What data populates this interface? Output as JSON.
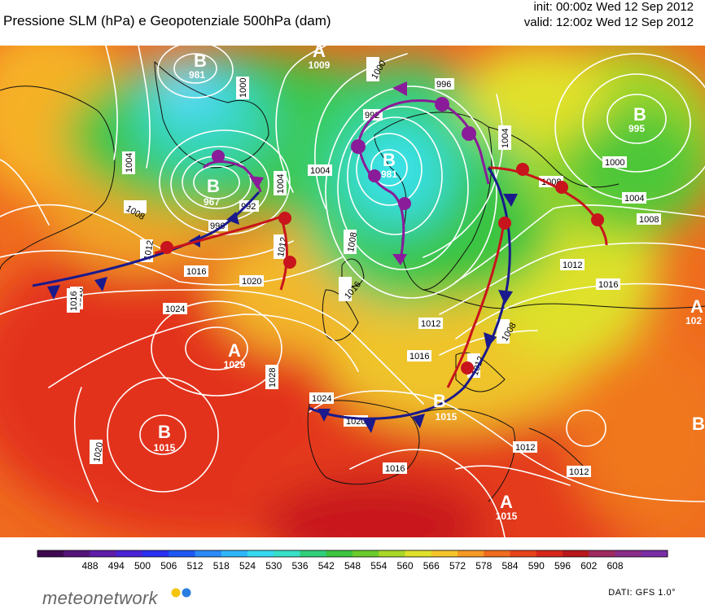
{
  "header": {
    "title": "Pressione SLM (hPa) e Geopotenziale 500hPa (dam)",
    "init": "init: 00:00z Wed 12 Sep 2012",
    "valid": "valid: 12:00z Wed 12 Sep 2012"
  },
  "pressure_centers": [
    {
      "letter": "B",
      "value": "981"
    },
    {
      "letter": "A",
      "value": "1009"
    },
    {
      "letter": "B",
      "value": "967"
    },
    {
      "letter": "B",
      "value": "981"
    },
    {
      "letter": "B",
      "value": "995"
    },
    {
      "letter": "A",
      "value": "1029"
    },
    {
      "letter": "B",
      "value": "1015"
    },
    {
      "letter": "A",
      "value": "1015"
    },
    {
      "letter": "A",
      "value": "102"
    },
    {
      "letter": "B",
      "value": "1015"
    },
    {
      "letter": "B",
      "value": ""
    }
  ],
  "isobar_labels": [
    "1000",
    "1004",
    "1008",
    "1012",
    "1016",
    "992",
    "996",
    "1020",
    "1024",
    "1028",
    "1004",
    "1008",
    "1012",
    "1016",
    "1004",
    "1000",
    "1004",
    "1008",
    "1012",
    "1016",
    "1000",
    "992",
    "996",
    "1004",
    "1008",
    "1012",
    "1016",
    "1020",
    "1024",
    "1016",
    "1012",
    "1012",
    "1020",
    "1016",
    "1008",
    "1012",
    "1016"
  ],
  "colorbar": {
    "ticks": [
      "488",
      "494",
      "500",
      "506",
      "512",
      "518",
      "524",
      "530",
      "536",
      "542",
      "548",
      "554",
      "560",
      "566",
      "572",
      "578",
      "584",
      "590",
      "596",
      "602",
      "608"
    ],
    "colors": [
      "#3f0a52",
      "#55157a",
      "#5e1ca9",
      "#4a22d6",
      "#2a2ff2",
      "#1d58f5",
      "#2a8af7",
      "#2eb6f9",
      "#36d9f0",
      "#37e0c6",
      "#2fcf7c",
      "#3bc43f",
      "#6ccb2c",
      "#a8d827",
      "#dfe12a",
      "#f6c52a",
      "#f59a25",
      "#ef6d1f",
      "#e8431b",
      "#d8261a",
      "#b8171c",
      "#9e2a60",
      "#8a2c8a",
      "#7a2ea6"
    ]
  },
  "footer": {
    "brand": "meteonetwork",
    "source": "DATI:  GFS  1.0°",
    "dot_colors": [
      "#f4c40f",
      "#2a7de1"
    ]
  }
}
